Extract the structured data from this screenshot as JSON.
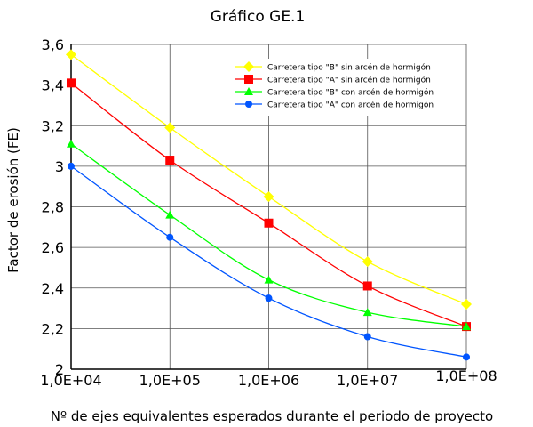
{
  "chart_data": {
    "type": "line",
    "title": "Gráfico GE.1",
    "xlabel": "Nº de ejes equivalentes esperados durante el periodo de proyecto",
    "ylabel": "Factor de erosión (FE)",
    "x_scale": "log",
    "categories": [
      "1,0E+04",
      "1,0E+05",
      "1,0E+06",
      "1,0E+07",
      "1,0E+08"
    ],
    "y_ticks": [
      "2",
      "2,2",
      "2,4",
      "2,6",
      "2,8",
      "3",
      "3,2",
      "3,4",
      "3,6"
    ],
    "ylim": [
      2.0,
      3.6
    ],
    "grid": true,
    "legend_position": "top-right",
    "series": [
      {
        "name": "Carretera tipo \"B\" sin arcén de hormigón",
        "color": "#ffff00",
        "marker": "diamond",
        "values": [
          3.55,
          3.19,
          2.85,
          2.53,
          2.32
        ]
      },
      {
        "name": "Carretera tipo \"A\" sin arcén de hormigón",
        "color": "#ff0000",
        "marker": "square",
        "values": [
          3.41,
          3.03,
          2.72,
          2.41,
          2.21
        ]
      },
      {
        "name": "Carretera tipo \"B\" con arcén de hormigón",
        "color": "#00ff00",
        "marker": "triangle",
        "values": [
          3.11,
          2.76,
          2.44,
          2.28,
          2.21
        ]
      },
      {
        "name": "Carretera tipo \"A\" con arcén de hormigón",
        "color": "#0055ff",
        "marker": "circle",
        "values": [
          3.0,
          2.65,
          2.35,
          2.16,
          2.06
        ]
      }
    ]
  }
}
